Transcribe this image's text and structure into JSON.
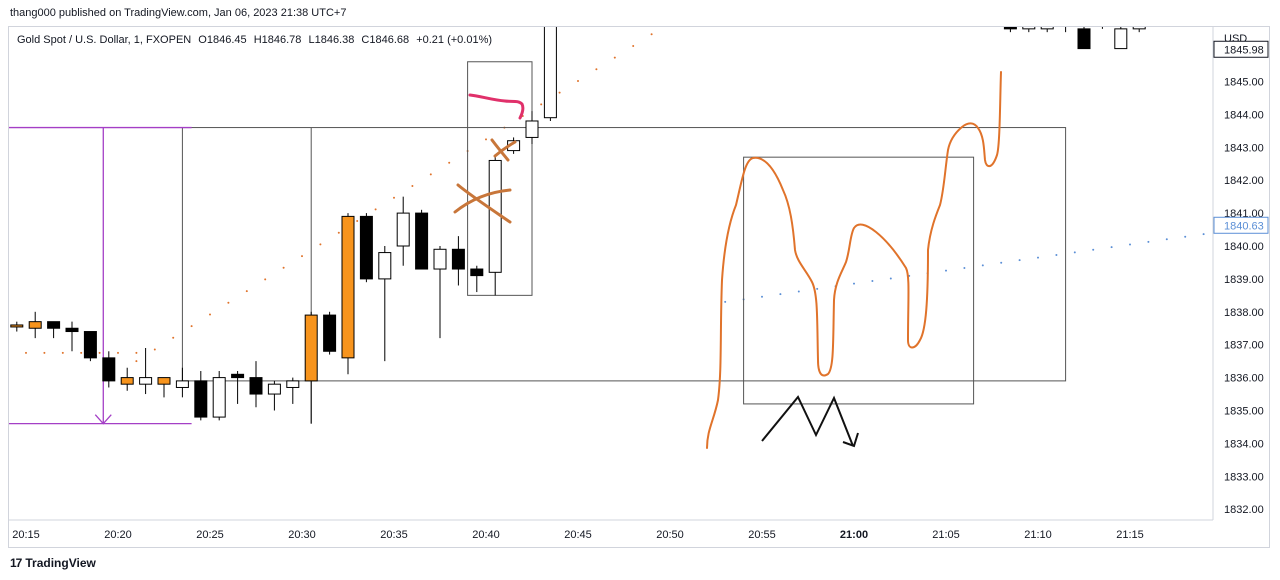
{
  "header": {
    "published_text": "thang000 published on TradingView.com, Jan 06, 2023 21:38 UTC+7"
  },
  "legend": {
    "symbol": "Gold Spot / U.S. Dollar, 1, FXOPEN",
    "open": "O1846.45",
    "high": "H1846.78",
    "low": "L1846.38",
    "close": "C1846.68",
    "change": "+0.21 (+0.01%)"
  },
  "footer": {
    "logo_mark": "17",
    "logo_text": "TradingView"
  },
  "colors": {
    "up_candle_fill": "#ffffff",
    "down_candle_fill": "#000000",
    "orange_candle_fill": "#f7941d",
    "drawing_orange": "#e0732b",
    "drawing_pink": "#e0306a",
    "drawing_brown": "#c8763a",
    "purple_line": "#a43fc6",
    "price_tag_blue": "#5b8fd6"
  },
  "chart_data": {
    "type": "candlestick",
    "currency_label": "USD",
    "price_tags": [
      {
        "value": "1845.98",
        "price": 1845.98,
        "color": "#131722"
      },
      {
        "value": "1840.63",
        "price": 1840.63,
        "color": "#5b8fd6"
      }
    ],
    "yticks": [
      "1845.00",
      "1844.00",
      "1843.00",
      "1842.00",
      "1841.00",
      "1840.00",
      "1839.00",
      "1838.00",
      "1837.00",
      "1836.00",
      "1835.00",
      "1834.00",
      "1833.00",
      "1832.00"
    ],
    "ytick_values": [
      1845,
      1844,
      1843,
      1842,
      1841,
      1840,
      1839,
      1838,
      1837,
      1836,
      1835,
      1834,
      1833,
      1832
    ],
    "xticks": [
      "20:15",
      "20:20",
      "20:25",
      "20:30",
      "20:35",
      "20:40",
      "20:45",
      "20:50",
      "20:55",
      "21:00",
      "21:05",
      "21:10",
      "21:15"
    ],
    "xtick_minutes": [
      0,
      5,
      10,
      15,
      20,
      25,
      30,
      35,
      40,
      45,
      50,
      55,
      60
    ],
    "bold_xtick": "21:00",
    "candles": [
      {
        "t": -0.5,
        "o": 1837.6,
        "h": 1837.7,
        "l": 1837.4,
        "c": 1837.6,
        "style": "orange"
      },
      {
        "t": 0.5,
        "o": 1837.5,
        "h": 1838.0,
        "l": 1837.2,
        "c": 1837.7,
        "style": "orange"
      },
      {
        "t": 1.5,
        "o": 1837.7,
        "h": 1837.7,
        "l": 1837.2,
        "c": 1837.5,
        "style": "black"
      },
      {
        "t": 2.5,
        "o": 1837.5,
        "h": 1837.7,
        "l": 1836.8,
        "c": 1837.4,
        "style": "black"
      },
      {
        "t": 3.5,
        "o": 1837.4,
        "h": 1837.4,
        "l": 1836.5,
        "c": 1836.6,
        "style": "black"
      },
      {
        "t": 4.5,
        "o": 1836.6,
        "h": 1836.8,
        "l": 1835.7,
        "c": 1835.9,
        "style": "black"
      },
      {
        "t": 5.5,
        "o": 1835.8,
        "h": 1836.3,
        "l": 1835.6,
        "c": 1836.0,
        "style": "orange"
      },
      {
        "t": 6.5,
        "o": 1835.8,
        "h": 1836.9,
        "l": 1835.5,
        "c": 1836.0,
        "style": "white"
      },
      {
        "t": 7.5,
        "o": 1835.8,
        "h": 1836.0,
        "l": 1835.4,
        "c": 1836.0,
        "style": "orange"
      },
      {
        "t": 8.5,
        "o": 1835.7,
        "h": 1836.3,
        "l": 1835.4,
        "c": 1835.9,
        "style": "white"
      },
      {
        "t": 9.5,
        "o": 1835.9,
        "h": 1836.2,
        "l": 1834.7,
        "c": 1834.8,
        "style": "black"
      },
      {
        "t": 10.5,
        "o": 1834.8,
        "h": 1836.2,
        "l": 1834.7,
        "c": 1836.0,
        "style": "white"
      },
      {
        "t": 11.5,
        "o": 1836.1,
        "h": 1836.2,
        "l": 1835.2,
        "c": 1836.0,
        "style": "black"
      },
      {
        "t": 12.5,
        "o": 1836.0,
        "h": 1836.5,
        "l": 1835.1,
        "c": 1835.5,
        "style": "black"
      },
      {
        "t": 13.5,
        "o": 1835.5,
        "h": 1835.9,
        "l": 1835.0,
        "c": 1835.8,
        "style": "white"
      },
      {
        "t": 14.5,
        "o": 1835.7,
        "h": 1836.0,
        "l": 1835.2,
        "c": 1835.9,
        "style": "white"
      },
      {
        "t": 15.5,
        "o": 1835.9,
        "h": 1838.0,
        "l": 1834.6,
        "c": 1837.9,
        "style": "orange"
      },
      {
        "t": 16.5,
        "o": 1837.9,
        "h": 1838.0,
        "l": 1836.7,
        "c": 1836.8,
        "style": "black"
      },
      {
        "t": 17.5,
        "o": 1836.6,
        "h": 1841.0,
        "l": 1836.1,
        "c": 1840.9,
        "style": "orange"
      },
      {
        "t": 18.5,
        "o": 1840.9,
        "h": 1841.0,
        "l": 1838.9,
        "c": 1839.0,
        "style": "black"
      },
      {
        "t": 19.5,
        "o": 1839.0,
        "h": 1840.0,
        "l": 1836.5,
        "c": 1839.8,
        "style": "white"
      },
      {
        "t": 20.5,
        "o": 1840.0,
        "h": 1841.5,
        "l": 1839.4,
        "c": 1841.0,
        "style": "white"
      },
      {
        "t": 21.5,
        "o": 1841.0,
        "h": 1841.1,
        "l": 1839.3,
        "c": 1839.3,
        "style": "black"
      },
      {
        "t": 22.5,
        "o": 1839.3,
        "h": 1840.0,
        "l": 1837.2,
        "c": 1839.9,
        "style": "white"
      },
      {
        "t": 23.5,
        "o": 1839.9,
        "h": 1840.3,
        "l": 1838.8,
        "c": 1839.3,
        "style": "black"
      },
      {
        "t": 24.5,
        "o": 1839.3,
        "h": 1839.4,
        "l": 1838.6,
        "c": 1839.1,
        "style": "black"
      },
      {
        "t": 25.5,
        "o": 1839.2,
        "h": 1842.7,
        "l": 1838.5,
        "c": 1842.6,
        "style": "white"
      },
      {
        "t": 26.5,
        "o": 1842.9,
        "h": 1843.3,
        "l": 1842.8,
        "c": 1843.2,
        "style": "white"
      },
      {
        "t": 27.5,
        "o": 1843.3,
        "h": 1844.1,
        "l": 1843.1,
        "c": 1843.8,
        "style": "white"
      },
      {
        "t": 28.5,
        "o": 1843.9,
        "h": 1848.0,
        "l": 1843.8,
        "c": 1848.0,
        "style": "white"
      },
      {
        "t": 53.5,
        "o": 1846.9,
        "h": 1846.9,
        "l": 1846.5,
        "c": 1846.6,
        "style": "black"
      },
      {
        "t": 54.5,
        "o": 1846.6,
        "h": 1846.9,
        "l": 1846.5,
        "c": 1846.8,
        "style": "white"
      },
      {
        "t": 55.5,
        "o": 1846.6,
        "h": 1847.0,
        "l": 1846.5,
        "c": 1846.8,
        "style": "white"
      },
      {
        "t": 56.5,
        "o": 1846.7,
        "h": 1847.0,
        "l": 1846.5,
        "c": 1846.8,
        "style": "white"
      },
      {
        "t": 57.5,
        "o": 1846.6,
        "h": 1846.7,
        "l": 1846.0,
        "c": 1846.0,
        "style": "black"
      },
      {
        "t": 58.5,
        "o": 1846.8,
        "h": 1846.9,
        "l": 1846.6,
        "c": 1846.8,
        "style": "black"
      },
      {
        "t": 59.5,
        "o": 1846.0,
        "h": 1846.7,
        "l": 1846.0,
        "c": 1846.6,
        "style": "white"
      },
      {
        "t": 60.5,
        "o": 1846.6,
        "h": 1847.0,
        "l": 1846.5,
        "c": 1846.9,
        "style": "white"
      },
      {
        "t": 64.5,
        "o": 1846.9,
        "h": 1847.0,
        "l": 1846.7,
        "c": 1846.8,
        "style": "black"
      },
      {
        "t": 65.5,
        "o": 1846.6,
        "h": 1846.7,
        "l": 1845.9,
        "c": 1846.0,
        "style": "black"
      }
    ],
    "orange_dot_line": {
      "from": [
        6,
        1836.5
      ],
      "to": [
        37,
        1847.5
      ],
      "step": 1
    },
    "blue_dot_line": {
      "from": [
        38,
        1838.3
      ],
      "to": [
        67,
        1840.6
      ],
      "step": 1
    },
    "left_dots": {
      "from": [
        -1,
        1836.75
      ],
      "to": [
        6,
        1836.75
      ],
      "step": 1
    },
    "purple_measure": {
      "x": 4.2,
      "top": 1843.6,
      "bottom": 1834.6,
      "x_left": -1.2,
      "x_right": 9.0
    },
    "rectangles": [
      {
        "t1": 9.0,
        "t2": 56.5,
        "p1": 1843.6,
        "p2": 1835.9,
        "anchor": "none"
      },
      {
        "t1": 24.5,
        "t2": 27.5,
        "p1": 1845.6,
        "p2": 1838.5,
        "anchor": "none"
      },
      {
        "t1": 39.5,
        "t2": 51.5,
        "p1": 1842.7,
        "p2": 1835.2,
        "anchor": "none"
      }
    ],
    "vertical_line": {
      "t": 15.5,
      "p_top": 1843.6,
      "p_bottom": 1834.6
    }
  }
}
